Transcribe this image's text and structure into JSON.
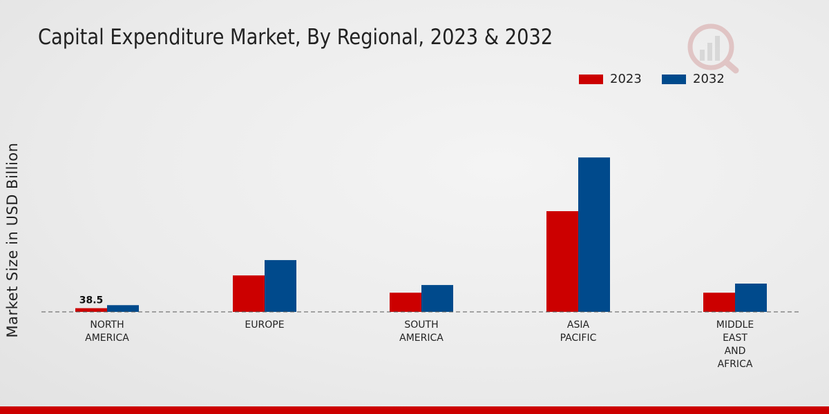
{
  "chart_data": {
    "type": "bar",
    "title": "Capital Expenditure Market, By Regional, 2023 & 2032",
    "xlabel": "",
    "ylabel": "Market Size in USD Billion",
    "categories": [
      [
        "NORTH",
        "AMERICA"
      ],
      [
        "EUROPE"
      ],
      [
        "SOUTH",
        "AMERICA"
      ],
      [
        "ASIA",
        "PACIFIC"
      ],
      [
        "MIDDLE",
        "EAST",
        "AND",
        "AFRICA"
      ]
    ],
    "series": [
      {
        "name": "2023",
        "color": "#cc0000",
        "values": [
          38.5,
          380,
          200,
          1050,
          200
        ]
      },
      {
        "name": "2032",
        "color": "#004a8c",
        "values": [
          70,
          540,
          280,
          1610,
          295
        ]
      }
    ],
    "data_labels": [
      {
        "series": 0,
        "index": 0,
        "text": "38.5"
      }
    ],
    "ylim": [
      0,
      2000
    ],
    "legend_position": "top-right",
    "grid": false
  },
  "colors": {
    "accent": "#cc0000",
    "secondary": "#004a8c"
  }
}
